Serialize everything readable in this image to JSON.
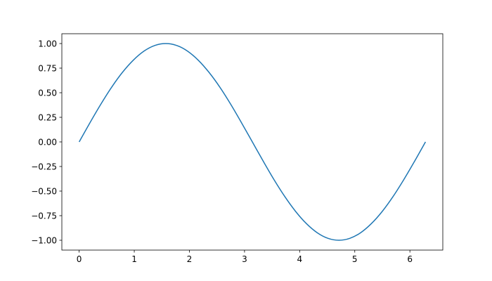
{
  "chart_data": {
    "type": "line",
    "title": "",
    "xlabel": "",
    "ylabel": "",
    "xlim": [
      -0.314,
      6.597
    ],
    "ylim": [
      -1.1,
      1.1
    ],
    "grid": false,
    "xticks": [
      0,
      1,
      2,
      3,
      4,
      5,
      6
    ],
    "xtick_labels": [
      "0",
      "1",
      "2",
      "3",
      "4",
      "5",
      "6"
    ],
    "yticks": [
      1.0,
      0.75,
      0.5,
      0.25,
      0.0,
      -0.25,
      -0.5,
      -0.75,
      -1.0
    ],
    "ytick_labels": [
      "1.00",
      "0.75",
      "0.50",
      "0.25",
      "0.00",
      "−0.25",
      "−0.50",
      "−0.75",
      "−1.00"
    ],
    "series": [
      {
        "color": "#1f77b4",
        "x": [
          0,
          0.196,
          0.393,
          0.589,
          0.785,
          0.982,
          1.178,
          1.374,
          1.571,
          1.767,
          1.963,
          2.16,
          2.356,
          2.553,
          2.749,
          2.945,
          3.142,
          3.338,
          3.534,
          3.731,
          3.927,
          4.123,
          4.32,
          4.516,
          4.712,
          4.909,
          5.105,
          5.301,
          5.498,
          5.694,
          5.89,
          6.087,
          6.283
        ],
        "y": [
          0,
          0.195,
          0.383,
          0.556,
          0.707,
          0.831,
          0.924,
          0.981,
          1,
          0.981,
          0.924,
          0.831,
          0.707,
          0.556,
          0.383,
          0.195,
          0,
          -0.195,
          -0.383,
          -0.556,
          -0.707,
          -0.831,
          -0.924,
          -0.981,
          -1,
          -0.981,
          -0.924,
          -0.831,
          -0.707,
          -0.556,
          -0.383,
          -0.195,
          0
        ]
      }
    ]
  }
}
